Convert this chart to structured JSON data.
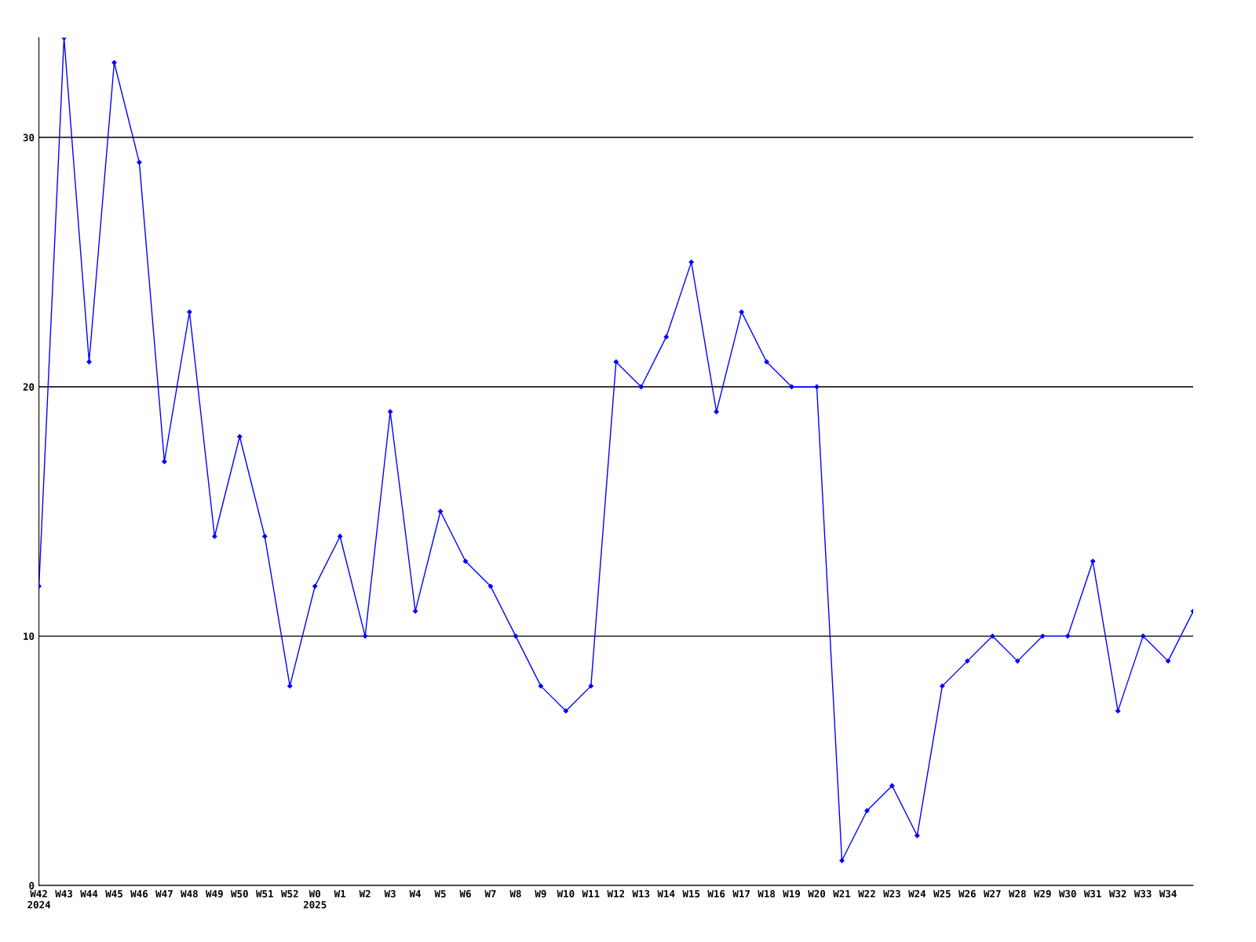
{
  "chart_data": {
    "type": "line",
    "categories": [
      "W42\n2024",
      "W43",
      "W44",
      "W45",
      "W46",
      "W47",
      "W48",
      "W49",
      "W50",
      "W51",
      "W52",
      "W0\n2025",
      "W1",
      "W2",
      "W3",
      "W4",
      "W5",
      "W6",
      "W7",
      "W8",
      "W9",
      "W10",
      "W11",
      "W12",
      "W13",
      "W14",
      "W15",
      "W16",
      "W17",
      "W18",
      "W19",
      "W20",
      "W21",
      "W22",
      "W23",
      "W24",
      "W25",
      "W26",
      "W27",
      "W28",
      "W29",
      "W30",
      "W31",
      "W32",
      "W33",
      "W34",
      null
    ],
    "series": [
      {
        "color": "#0000ff",
        "values": [
          12,
          34,
          21,
          33,
          29,
          17,
          23,
          14,
          18,
          14,
          8,
          12,
          14,
          10,
          19,
          11,
          15,
          13,
          12,
          10,
          8,
          7,
          8,
          21,
          20,
          22,
          25,
          19,
          23,
          21,
          20,
          20,
          1,
          3,
          4,
          2,
          8,
          9,
          10,
          9,
          10,
          10,
          13,
          7,
          10,
          9,
          11
        ]
      }
    ],
    "ylim": [
      0,
      34
    ],
    "yticks": [
      0,
      10,
      20,
      30
    ],
    "grid": "y",
    "marker": "diamond",
    "line_style": "solid",
    "legend": false
  }
}
